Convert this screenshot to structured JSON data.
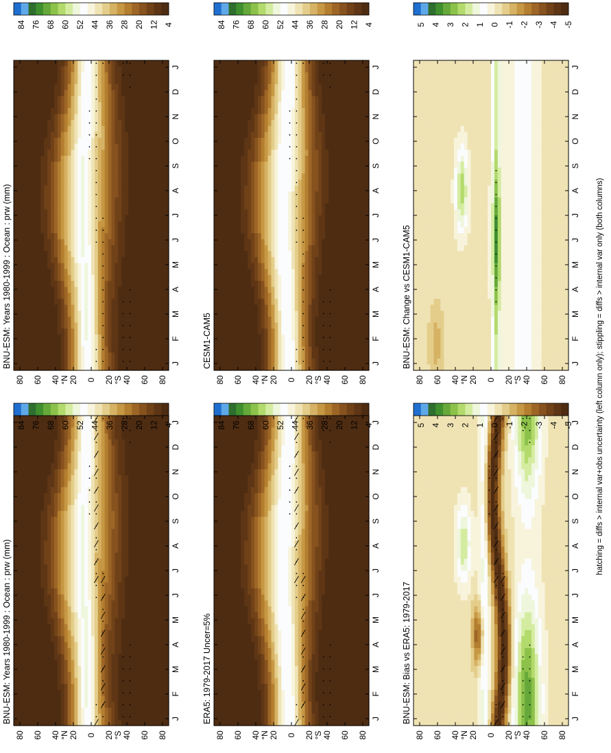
{
  "footer_note": "hatching = diffs > internal var+obs uncertainty (left column only); stippling = diffs > internal var only (both columns)",
  "scales": {
    "abs": {
      "labels": [
        "84",
        "76",
        "68",
        "60",
        "52",
        "44",
        "36",
        "28",
        "20",
        "12",
        "4"
      ],
      "colors": [
        "#1f6fd0",
        "#5fa8e8",
        "#2e6e2e",
        "#3f8f2f",
        "#66a93a",
        "#8cc24a",
        "#b2da6c",
        "#d4eca0",
        "#eef6dc",
        "#fafcfe",
        "#f8f4dc",
        "#efe3b4",
        "#e4cd8a",
        "#d6b264",
        "#c79844",
        "#b47e30",
        "#9e6626",
        "#87521e",
        "#714218",
        "#5e3615",
        "#4e2c12"
      ]
    },
    "diff": {
      "labels": [
        "5",
        "4",
        "3",
        "2",
        "1",
        "0",
        "-1",
        "-2",
        "-3",
        "-4",
        "-5"
      ],
      "colors": [
        "#1f6fd0",
        "#5fa8e8",
        "#2e6e2e",
        "#3f8f2f",
        "#66a93a",
        "#8cc24a",
        "#b2da6c",
        "#d4eca0",
        "#eef6dc",
        "#fafcfe",
        "#f8f4dc",
        "#efe3b4",
        "#e4cd8a",
        "#d6b264",
        "#c79844",
        "#b47e30",
        "#9e6626",
        "#87521e",
        "#714218",
        "#5e3615",
        "#4e2c12"
      ]
    }
  },
  "chart_data": [
    {
      "id": "model-left",
      "type": "heatmap",
      "title": "BNU-ESM: Years 1980-1999 : Ocean : prw (mm)",
      "x_ticks": [
        "J",
        "F",
        "M",
        "A",
        "M",
        "J",
        "J",
        "A",
        "S",
        "O",
        "N",
        "D",
        "J"
      ],
      "y_ticks": [
        "80",
        "60",
        "40",
        "20",
        "0",
        "20",
        "40",
        "60",
        "80"
      ],
      "y_unit_labels": {
        "north": "°N",
        "south": "°S"
      },
      "xlabel": "",
      "ylabel": "",
      "field": "abs",
      "hatching": true,
      "stippling": true
    },
    {
      "id": "model-right",
      "type": "heatmap",
      "title": "BNU-ESM: Years 1980-1999 : Ocean : prw (mm)",
      "x_ticks": [
        "J",
        "F",
        "M",
        "A",
        "M",
        "J",
        "J",
        "A",
        "S",
        "O",
        "N",
        "D",
        "J"
      ],
      "y_ticks": [
        "80",
        "60",
        "40",
        "20",
        "0",
        "20",
        "40",
        "60",
        "80"
      ],
      "y_unit_labels": {
        "north": "°N",
        "south": "°S"
      },
      "xlabel": "",
      "ylabel": "",
      "field": "abs",
      "hatching": false,
      "stippling": true
    },
    {
      "id": "ref-left",
      "type": "heatmap",
      "title": "ERA5: 1979-2017 Uncer=5%",
      "x_ticks": [
        "J",
        "F",
        "M",
        "A",
        "M",
        "J",
        "J",
        "A",
        "S",
        "O",
        "N",
        "D",
        "J"
      ],
      "y_ticks": [
        "80",
        "60",
        "40",
        "20",
        "0",
        "20",
        "40",
        "60",
        "80"
      ],
      "y_unit_labels": {
        "north": "°N",
        "south": "°S"
      },
      "xlabel": "",
      "ylabel": "",
      "field": "abs",
      "hatching": true,
      "stippling": true
    },
    {
      "id": "ref-right",
      "type": "heatmap",
      "title": "CESM1-CAM5",
      "x_ticks": [
        "J",
        "F",
        "M",
        "A",
        "M",
        "J",
        "J",
        "A",
        "S",
        "O",
        "N",
        "D",
        "J"
      ],
      "y_ticks": [
        "80",
        "60",
        "40",
        "20",
        "0",
        "20",
        "40",
        "60",
        "80"
      ],
      "y_unit_labels": {
        "north": "°N",
        "south": "°S"
      },
      "xlabel": "",
      "ylabel": "",
      "field": "abs",
      "hatching": false,
      "stippling": true
    },
    {
      "id": "diff-left",
      "type": "heatmap",
      "title": "BNU-ESM: Bias vs ERA5: 1979-2017",
      "x_ticks": [
        "J",
        "F",
        "M",
        "A",
        "M",
        "J",
        "J",
        "A",
        "S",
        "O",
        "N",
        "D",
        "J"
      ],
      "y_ticks": [
        "80",
        "60",
        "40",
        "20",
        "0",
        "20",
        "40",
        "60",
        "80"
      ],
      "y_unit_labels": {
        "north": "°N",
        "south": "°S"
      },
      "xlabel": "",
      "ylabel": "",
      "field": "bias",
      "hatching": true,
      "stippling": true
    },
    {
      "id": "diff-right",
      "type": "heatmap",
      "title": "BNU-ESM: Change vs CESM1-CAM5",
      "x_ticks": [
        "J",
        "F",
        "M",
        "A",
        "M",
        "J",
        "J",
        "A",
        "S",
        "O",
        "N",
        "D",
        "J"
      ],
      "y_ticks": [
        "80",
        "60",
        "40",
        "20",
        "0",
        "20",
        "40",
        "60",
        "80"
      ],
      "y_unit_labels": {
        "north": "°N",
        "south": "°S"
      },
      "xlabel": "",
      "ylabel": "",
      "field": "change",
      "hatching": false,
      "stippling": true
    }
  ]
}
